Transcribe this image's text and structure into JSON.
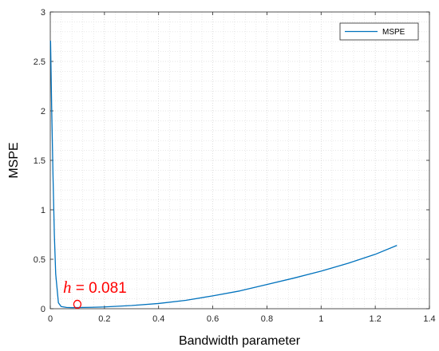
{
  "chart_data": {
    "type": "line",
    "title": "",
    "xlabel": "Bandwidth parameter",
    "ylabel": "MSPE",
    "xlim": [
      0,
      1.4
    ],
    "ylim": [
      0,
      3
    ],
    "xticks": [
      "0",
      "0.2",
      "0.4",
      "0.6",
      "0.8",
      "1",
      "1.2",
      "1.4"
    ],
    "yticks": [
      "0",
      "0.5",
      "1",
      "1.5",
      "2",
      "2.5",
      "3"
    ],
    "grid": "dotted major and minor",
    "legend_position": "top-right",
    "series": [
      {
        "name": "MSPE",
        "color": "#0072bd",
        "x": [
          0.001,
          0.005,
          0.01,
          0.015,
          0.02,
          0.03,
          0.04,
          0.06,
          0.081,
          0.1,
          0.15,
          0.2,
          0.3,
          0.4,
          0.5,
          0.6,
          0.7,
          0.8,
          0.9,
          1.0,
          1.1,
          1.2,
          1.28
        ],
        "y": [
          2.71,
          2.05,
          1.35,
          0.75,
          0.35,
          0.06,
          0.022,
          0.013,
          0.011,
          0.012,
          0.014,
          0.018,
          0.032,
          0.053,
          0.085,
          0.13,
          0.18,
          0.245,
          0.31,
          0.38,
          0.46,
          0.55,
          0.64
        ]
      }
    ],
    "annotation": {
      "symbol": "h",
      "text": " = 0.081",
      "marker": {
        "x": 0.1,
        "y": 0.045,
        "color": "#ff0000"
      }
    }
  }
}
